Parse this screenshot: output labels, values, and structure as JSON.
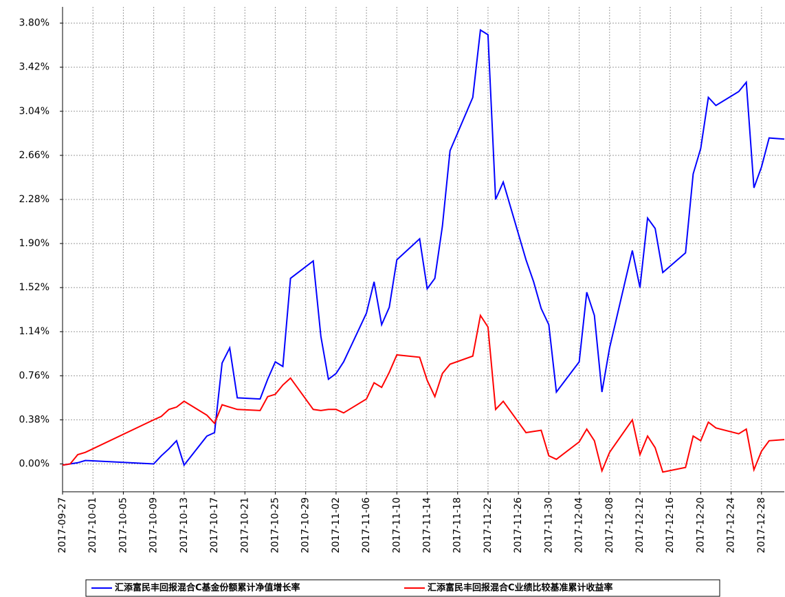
{
  "chart_data": {
    "type": "line",
    "x": [
      "2017-09-27",
      "2017-09-28",
      "2017-09-29",
      "2017-09-30",
      "2017-10-09",
      "2017-10-10",
      "2017-10-11",
      "2017-10-12",
      "2017-10-13",
      "2017-10-16",
      "2017-10-17",
      "2017-10-18",
      "2017-10-19",
      "2017-10-20",
      "2017-10-23",
      "2017-10-24",
      "2017-10-25",
      "2017-10-26",
      "2017-10-27",
      "2017-10-30",
      "2017-10-31",
      "2017-11-01",
      "2017-11-02",
      "2017-11-03",
      "2017-11-06",
      "2017-11-07",
      "2017-11-08",
      "2017-11-09",
      "2017-11-10",
      "2017-11-13",
      "2017-11-14",
      "2017-11-15",
      "2017-11-16",
      "2017-11-17",
      "2017-11-20",
      "2017-11-21",
      "2017-11-22",
      "2017-11-23",
      "2017-11-24",
      "2017-11-27",
      "2017-11-28",
      "2017-11-29",
      "2017-11-30",
      "2017-12-01",
      "2017-12-04",
      "2017-12-05",
      "2017-12-06",
      "2017-12-07",
      "2017-12-08",
      "2017-12-11",
      "2017-12-12",
      "2017-12-13",
      "2017-12-14",
      "2017-12-15",
      "2017-12-18",
      "2017-12-19",
      "2017-12-20",
      "2017-12-21",
      "2017-12-22",
      "2017-12-25",
      "2017-12-26",
      "2017-12-27",
      "2017-12-28",
      "2017-12-29",
      "2017-12-31"
    ],
    "series": [
      {
        "name": "汇添富民丰回报混合C基金份额累计净值增长率",
        "color": "#0000ff",
        "values": [
          -0.01,
          0.0,
          0.01,
          0.03,
          0.0,
          0.07,
          0.13,
          0.2,
          -0.01,
          0.24,
          0.27,
          0.87,
          1.0,
          0.57,
          0.56,
          0.73,
          0.88,
          0.84,
          1.6,
          1.75,
          1.1,
          0.73,
          0.78,
          0.88,
          1.3,
          1.57,
          1.2,
          1.35,
          1.76,
          1.94,
          1.51,
          1.6,
          2.05,
          2.7,
          3.16,
          3.74,
          3.7,
          2.28,
          2.43,
          1.76,
          1.57,
          1.34,
          1.2,
          0.62,
          0.88,
          1.48,
          1.28,
          0.62,
          1.0,
          1.84,
          1.52,
          2.12,
          2.03,
          1.65,
          1.82,
          2.5,
          2.72,
          3.16,
          3.09,
          3.21,
          3.29,
          2.38,
          2.56,
          2.81,
          2.8
        ]
      },
      {
        "name": "汇添富民丰回报混合C业绩比较基准累计收益率",
        "color": "#ff0000",
        "values": [
          -0.01,
          0.0,
          0.08,
          0.1,
          0.38,
          0.41,
          0.47,
          0.49,
          0.54,
          0.42,
          0.35,
          0.51,
          0.49,
          0.47,
          0.46,
          0.58,
          0.6,
          0.68,
          0.74,
          0.47,
          0.46,
          0.47,
          0.47,
          0.44,
          0.56,
          0.7,
          0.66,
          0.79,
          0.94,
          0.92,
          0.72,
          0.58,
          0.78,
          0.86,
          0.93,
          1.28,
          1.18,
          0.47,
          0.54,
          0.27,
          0.28,
          0.29,
          0.07,
          0.04,
          0.19,
          0.3,
          0.2,
          -0.06,
          0.1,
          0.38,
          0.08,
          0.24,
          0.14,
          -0.07,
          -0.03,
          0.24,
          0.2,
          0.36,
          0.31,
          0.26,
          0.3,
          -0.05,
          0.11,
          0.2,
          0.21
        ]
      }
    ],
    "xlim": [
      "2017-09-27",
      "2017-12-31"
    ],
    "xticks": [
      "2017-09-27",
      "2017-10-01",
      "2017-10-05",
      "2017-10-09",
      "2017-10-13",
      "2017-10-17",
      "2017-10-21",
      "2017-10-25",
      "2017-10-29",
      "2017-11-02",
      "2017-11-06",
      "2017-11-10",
      "2017-11-14",
      "2017-11-18",
      "2017-11-22",
      "2017-11-26",
      "2017-11-30",
      "2017-12-04",
      "2017-12-08",
      "2017-12-12",
      "2017-12-16",
      "2017-12-20",
      "2017-12-24",
      "2017-12-28"
    ],
    "ylim": [
      -0.24,
      3.94
    ],
    "yticks": [
      {
        "value": 0,
        "label": "0.00%"
      },
      {
        "value": 0.38,
        "label": "0.38%"
      },
      {
        "value": 0.76,
        "label": "0.76%"
      },
      {
        "value": 1.14,
        "label": "1.14%"
      },
      {
        "value": 1.52,
        "label": "1.52%"
      },
      {
        "value": 1.9,
        "label": "1.90%"
      },
      {
        "value": 2.28,
        "label": "2.28%"
      },
      {
        "value": 2.66,
        "label": "2.66%"
      },
      {
        "value": 3.04,
        "label": "3.04%"
      },
      {
        "value": 3.42,
        "label": "3.42%"
      },
      {
        "value": 3.8,
        "label": "3.80%"
      }
    ],
    "grid": true,
    "legend": "bottom"
  }
}
